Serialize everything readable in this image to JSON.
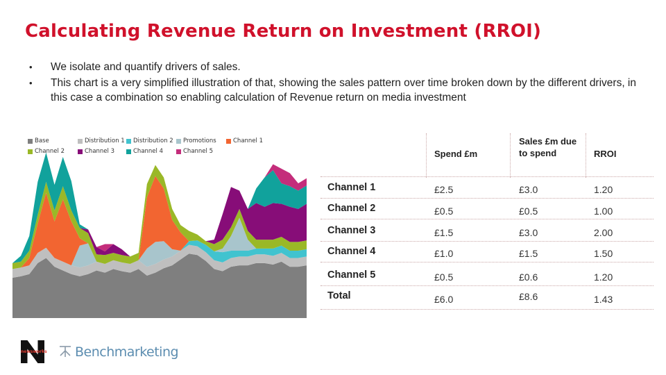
{
  "title": "Calculating Revenue Return on Investment (RROI)",
  "bullets": [
    "We isolate and quantify drivers of sales.",
    "This chart is a very simplified illustration of that, showing the sales pattern over time broken down by the different drivers, in this case a combination so enabling calculation of Revenue return on media investment"
  ],
  "chart_data": {
    "type": "area",
    "stacked": true,
    "x": [
      1,
      2,
      3,
      4,
      5,
      6,
      7,
      8,
      9,
      10,
      11,
      12,
      13,
      14,
      15,
      16,
      17,
      18,
      19,
      20,
      21,
      22,
      23,
      24,
      25,
      26,
      27,
      28,
      29,
      30,
      31,
      32,
      33,
      34,
      35,
      36
    ],
    "legend_placement": "top",
    "series": [
      {
        "name": "Base",
        "color": "#7f7f7f",
        "values": [
          55,
          57,
          60,
          75,
          82,
          70,
          65,
          60,
          57,
          60,
          65,
          62,
          67,
          64,
          62,
          67,
          58,
          62,
          68,
          72,
          80,
          88,
          86,
          78,
          67,
          64,
          70,
          72,
          72,
          75,
          75,
          73,
          77,
          70,
          70,
          72
        ]
      },
      {
        "name": "Distribution 1",
        "color": "#bfbfbf",
        "values": [
          12,
          12,
          12,
          14,
          14,
          12,
          12,
          12,
          12,
          12,
          12,
          12,
          12,
          12,
          12,
          12,
          12,
          12,
          12,
          12,
          12,
          12,
          12,
          12,
          12,
          12,
          12,
          12,
          12,
          12,
          12,
          12,
          12,
          12,
          12,
          12
        ]
      },
      {
        "name": "Distribution 2",
        "color": "#41c3cf",
        "values": [
          0,
          0,
          0,
          0,
          0,
          0,
          0,
          0,
          0,
          0,
          0,
          0,
          0,
          0,
          0,
          0,
          0,
          0,
          0,
          0,
          0,
          5,
          8,
          10,
          12,
          14,
          10,
          8,
          8,
          8,
          8,
          10,
          10,
          10,
          10,
          10
        ]
      },
      {
        "name": "Promotions",
        "color": "#a8c5cc",
        "values": [
          0,
          0,
          0,
          0,
          0,
          0,
          0,
          0,
          30,
          30,
          0,
          0,
          0,
          0,
          0,
          0,
          25,
          30,
          25,
          10,
          0,
          0,
          0,
          0,
          0,
          5,
          20,
          45,
          15,
          0,
          0,
          0,
          0,
          0,
          0,
          0
        ]
      },
      {
        "name": "Channel 1",
        "color": "#f26531",
        "values": [
          0,
          0,
          10,
          40,
          75,
          50,
          85,
          60,
          10,
          0,
          0,
          0,
          0,
          0,
          0,
          0,
          70,
          90,
          72,
          40,
          25,
          0,
          0,
          0,
          0,
          0,
          0,
          0,
          0,
          0,
          0,
          0,
          0,
          0,
          0,
          0
        ]
      },
      {
        "name": "Channel 2",
        "color": "#9ab827",
        "values": [
          8,
          8,
          10,
          12,
          15,
          15,
          18,
          15,
          14,
          14,
          10,
          12,
          10,
          10,
          10,
          10,
          18,
          15,
          15,
          15,
          10,
          14,
          8,
          5,
          10,
          12,
          12,
          12,
          12,
          12,
          12,
          12,
          12,
          12,
          12,
          12
        ]
      },
      {
        "name": "Channel 3",
        "color": "#870d78",
        "values": [
          0,
          0,
          0,
          0,
          0,
          0,
          0,
          0,
          0,
          5,
          10,
          5,
          12,
          8,
          0,
          0,
          0,
          0,
          0,
          0,
          0,
          0,
          0,
          0,
          6,
          35,
          55,
          25,
          30,
          50,
          45,
          50,
          45,
          48,
          45,
          50
        ]
      },
      {
        "name": "Channel 4",
        "color": "#11a29c",
        "values": [
          0,
          8,
          20,
          45,
          40,
          35,
          40,
          40,
          5,
          0,
          0,
          0,
          0,
          0,
          0,
          0,
          0,
          0,
          0,
          0,
          0,
          0,
          0,
          0,
          0,
          0,
          0,
          0,
          0,
          20,
          40,
          45,
          28,
          28,
          25,
          25
        ]
      },
      {
        "name": "Channel 5",
        "color": "#c42d7b",
        "values": [
          0,
          0,
          0,
          0,
          0,
          0,
          0,
          0,
          0,
          0,
          0,
          10,
          0,
          0,
          0,
          0,
          0,
          0,
          0,
          0,
          0,
          0,
          0,
          0,
          0,
          0,
          0,
          0,
          0,
          0,
          0,
          8,
          20,
          18,
          10,
          10
        ]
      }
    ]
  },
  "legend": [
    {
      "label": "Base",
      "color": "#7f7f7f"
    },
    {
      "label": "Distribution 1",
      "color": "#bfbfbf"
    },
    {
      "label": "Distribution 2",
      "color": "#41c3cf"
    },
    {
      "label": "Promotions",
      "color": "#a8c5cc"
    },
    {
      "label": "Channel 1",
      "color": "#f26531"
    },
    {
      "label": "Channel 2",
      "color": "#9ab827"
    },
    {
      "label": "Channel 3",
      "color": "#870d78"
    },
    {
      "label": "Channel 4",
      "color": "#11a29c"
    },
    {
      "label": "Channel 5",
      "color": "#c42d7b"
    }
  ],
  "table": {
    "headers": [
      "Spend £m",
      "Sales £m due to spend",
      "RROI"
    ],
    "rows": [
      {
        "label": "Channel 1",
        "spend": "£2.5",
        "sales": "£3.0",
        "rroi": "1.20"
      },
      {
        "label": "Channel 2",
        "spend": "£0.5",
        "sales": "£0.5",
        "rroi": "1.00"
      },
      {
        "label": "Channel 3",
        "spend": "£1.5",
        "sales": "£3.0",
        "rroi": "2.00"
      },
      {
        "label": "Channel 4",
        "spend": "£1.0",
        "sales": "£1.5",
        "rroi": "1.50"
      },
      {
        "label": "Channel 5",
        "spend": "£0.5",
        "sales": "£0.6",
        "rroi": "1.20"
      },
      {
        "label": "Total",
        "spend": "£6.0",
        "sales": "£8.6",
        "rroi": "1.43"
      }
    ]
  },
  "logos": {
    "newsworks_label": "newsworks",
    "benchmarketing_label": "Benchmarketing"
  },
  "colors": {
    "title": "#d0112b",
    "table_rule": "#c9a6a6",
    "benchmarketing": "#5c8db0"
  }
}
